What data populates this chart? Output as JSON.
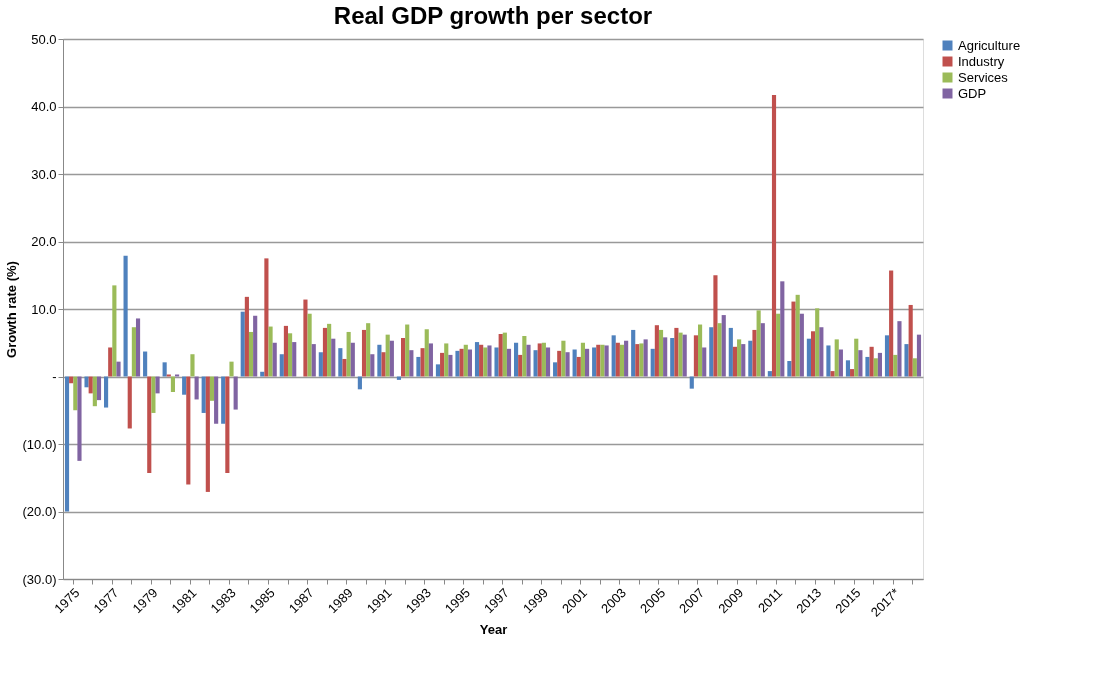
{
  "chart_data": {
    "type": "bar",
    "title": "Real GDP growth per sector",
    "xlabel": "Year",
    "ylabel": "Growth rate (%)",
    "categories": [
      "1975",
      null,
      "1977",
      null,
      "1979",
      null,
      "1981",
      null,
      "1983",
      null,
      "1985",
      null,
      "1987",
      null,
      "1989",
      null,
      "1991",
      null,
      "1993",
      null,
      "1995",
      null,
      "1997",
      null,
      "1999",
      null,
      "2001",
      null,
      "2003",
      null,
      "2005",
      null,
      "2007",
      null,
      "2009",
      null,
      "2011",
      null,
      "2013",
      null,
      "2015",
      null,
      "2017*",
      null
    ],
    "series": [
      {
        "name": "Agriculture",
        "color": "#4f81bd",
        "values": [
          -20.0,
          -1.6,
          -4.6,
          17.9,
          3.7,
          2.1,
          -2.7,
          -5.4,
          -7.0,
          9.6,
          0.7,
          3.3,
          0.0,
          3.6,
          4.2,
          -1.9,
          4.7,
          -0.5,
          2.9,
          1.8,
          3.8,
          5.1,
          4.3,
          5.0,
          3.9,
          2.1,
          4.0,
          4.3,
          6.1,
          6.9,
          4.1,
          5.7,
          -1.8,
          7.3,
          7.2,
          5.3,
          0.8,
          2.3,
          5.6,
          4.6,
          2.4,
          2.9,
          6.1,
          4.8
        ]
      },
      {
        "name": "Industry",
        "color": "#c0504d",
        "values": [
          -1.0,
          -2.5,
          4.3,
          -7.7,
          -14.3,
          0.3,
          -16.0,
          -17.1,
          -14.3,
          11.8,
          17.5,
          7.5,
          11.4,
          7.2,
          2.6,
          6.9,
          3.6,
          5.7,
          4.2,
          3.5,
          4.1,
          4.7,
          6.3,
          3.2,
          4.9,
          3.8,
          2.9,
          4.7,
          5.0,
          4.8,
          7.6,
          7.2,
          6.1,
          15.0,
          4.4,
          6.9,
          41.7,
          11.1,
          6.7,
          0.8,
          1.1,
          4.4,
          15.7,
          10.6
        ]
      },
      {
        "name": "Services",
        "color": "#9bbb59",
        "values": [
          -5.0,
          -4.4,
          13.5,
          7.3,
          -5.4,
          -2.3,
          3.3,
          -3.6,
          2.2,
          6.6,
          7.4,
          6.4,
          9.3,
          7.8,
          6.6,
          7.9,
          6.2,
          7.7,
          7.0,
          4.9,
          4.7,
          4.3,
          6.5,
          6.0,
          5.0,
          5.3,
          5.0,
          4.7,
          4.7,
          4.9,
          6.9,
          6.5,
          7.7,
          7.9,
          5.5,
          9.8,
          9.3,
          12.1,
          10.1,
          5.5,
          5.6,
          2.7,
          3.2,
          2.7
        ]
      },
      {
        "name": "GDP",
        "color": "#8064a2",
        "values": [
          -12.5,
          -3.5,
          2.2,
          8.6,
          -2.5,
          0.3,
          -3.4,
          -7.0,
          -4.9,
          9.0,
          5.0,
          5.1,
          4.8,
          5.6,
          5.0,
          3.3,
          5.3,
          3.9,
          4.9,
          3.2,
          4.0,
          4.6,
          4.1,
          4.7,
          4.3,
          3.6,
          4.1,
          4.6,
          5.3,
          5.5,
          5.8,
          6.2,
          4.3,
          9.1,
          4.8,
          7.9,
          14.1,
          9.3,
          7.3,
          4.0,
          3.9,
          3.5,
          8.2,
          6.2
        ]
      }
    ],
    "ylim": [
      -30,
      50
    ],
    "yticks": [
      {
        "value": 50,
        "label": "50.0"
      },
      {
        "value": 40,
        "label": "40.0"
      },
      {
        "value": 30,
        "label": "30.0"
      },
      {
        "value": 20,
        "label": "20.0"
      },
      {
        "value": 10,
        "label": "10.0"
      },
      {
        "value": 0,
        "label": "-"
      },
      {
        "value": -10,
        "label": "(10.0)"
      },
      {
        "value": -20,
        "label": "(20.0)"
      },
      {
        "value": -30,
        "label": "(30.0)"
      }
    ],
    "grid": "y",
    "legend": "right"
  }
}
